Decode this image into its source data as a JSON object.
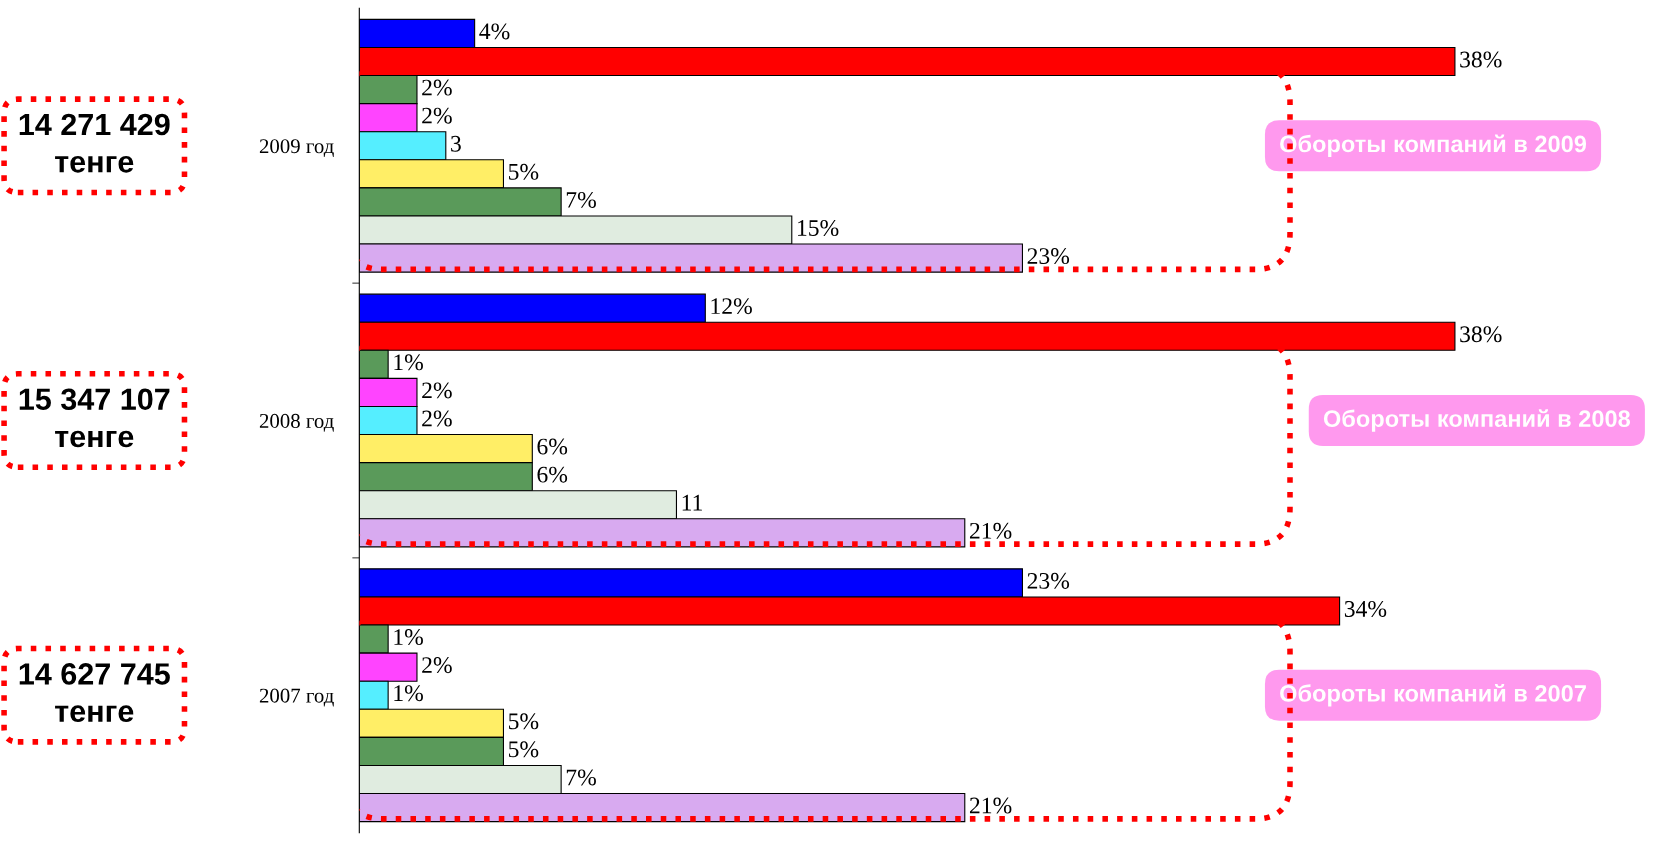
{
  "chart_data": {
    "type": "bar",
    "orientation": "horizontal",
    "categories": [
      "2009 год",
      "2008 год",
      "2007 год"
    ],
    "series": [
      {
        "color": "#0000ff",
        "values": [
          4,
          12,
          23
        ],
        "value_labels": [
          "4%",
          "12%",
          "23%"
        ]
      },
      {
        "color": "#ff0000",
        "values": [
          38,
          38,
          34
        ],
        "value_labels": [
          "38%",
          "38%",
          "34%"
        ]
      },
      {
        "color": "#5a9a5a",
        "values": [
          2,
          1,
          1
        ],
        "value_labels": [
          "2%",
          "1%",
          "1%"
        ]
      },
      {
        "color": "#ff44ff",
        "values": [
          2,
          2,
          2
        ],
        "value_labels": [
          "2%",
          "2%",
          "2%"
        ]
      },
      {
        "color": "#55eeff",
        "values": [
          3,
          2,
          1
        ],
        "value_labels": [
          "3",
          "2%",
          "1%"
        ]
      },
      {
        "color": "#ffee66",
        "values": [
          5,
          6,
          5
        ],
        "value_labels": [
          "5%",
          "6%",
          "5%"
        ]
      },
      {
        "color": "#5a9a5a",
        "values": [
          7,
          6,
          5
        ],
        "value_labels": [
          "7%",
          "6%",
          "5%"
        ]
      },
      {
        "color": "#e0ece0",
        "values": [
          15,
          11,
          7
        ],
        "value_labels": [
          "15%",
          "11",
          "7%"
        ]
      },
      {
        "color": "#d8aaf0",
        "values": [
          23,
          21,
          21
        ],
        "value_labels": [
          "23%",
          "21%",
          "21%"
        ]
      }
    ],
    "annotations": [
      "14 271 429\nтенге",
      "15 347 107\nтенге",
      "14 627 745\nтенге",
      "Обороты компаний в 2009",
      "Обороты компаний в 2008",
      "Обороты компаний в 2007"
    ],
    "grid": false,
    "legend": false,
    "tick_labels": "y"
  }
}
